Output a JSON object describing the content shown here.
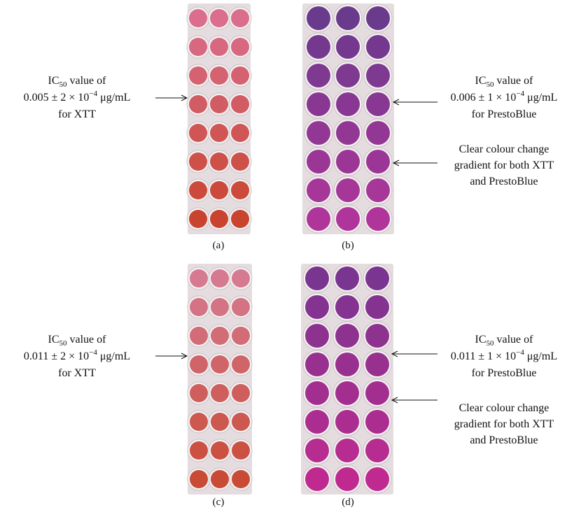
{
  "panels": [
    {
      "label": "(a)"
    },
    {
      "label": "(b)"
    },
    {
      "label": "(c)"
    },
    {
      "label": "(d)"
    }
  ],
  "annotations": [
    {
      "prefix": "IC",
      "subscript": "50",
      "suffix": " value of",
      "value": "0.005 ± 2 × 10",
      "exponent": "−4",
      "unit": " μg/mL",
      "assay": "for XTT"
    },
    {
      "prefix": "IC",
      "subscript": "50",
      "suffix": " value of",
      "value": "0.006 ± 1 × 10",
      "exponent": "−4",
      "unit": " μg/mL",
      "assay": "for PrestoBlue"
    },
    {
      "prefix": "IC",
      "subscript": "50",
      "suffix": " value of",
      "value": "0.011 ± 2 × 10",
      "exponent": "−4",
      "unit": " μg/mL",
      "assay": "for XTT"
    },
    {
      "prefix": "IC",
      "subscript": "50",
      "suffix": " value of",
      "value": "0.011 ± 1 × 10",
      "exponent": "−4",
      "unit": " μg/mL",
      "assay": "for PrestoBlue"
    }
  ],
  "notes": [
    {
      "lines": [
        "Clear colour change",
        "gradient for both XTT",
        "and PrestoBlue"
      ]
    },
    {
      "lines": [
        "Clear colour change",
        "gradient for both XTT",
        "and PrestoBlue"
      ]
    }
  ]
}
